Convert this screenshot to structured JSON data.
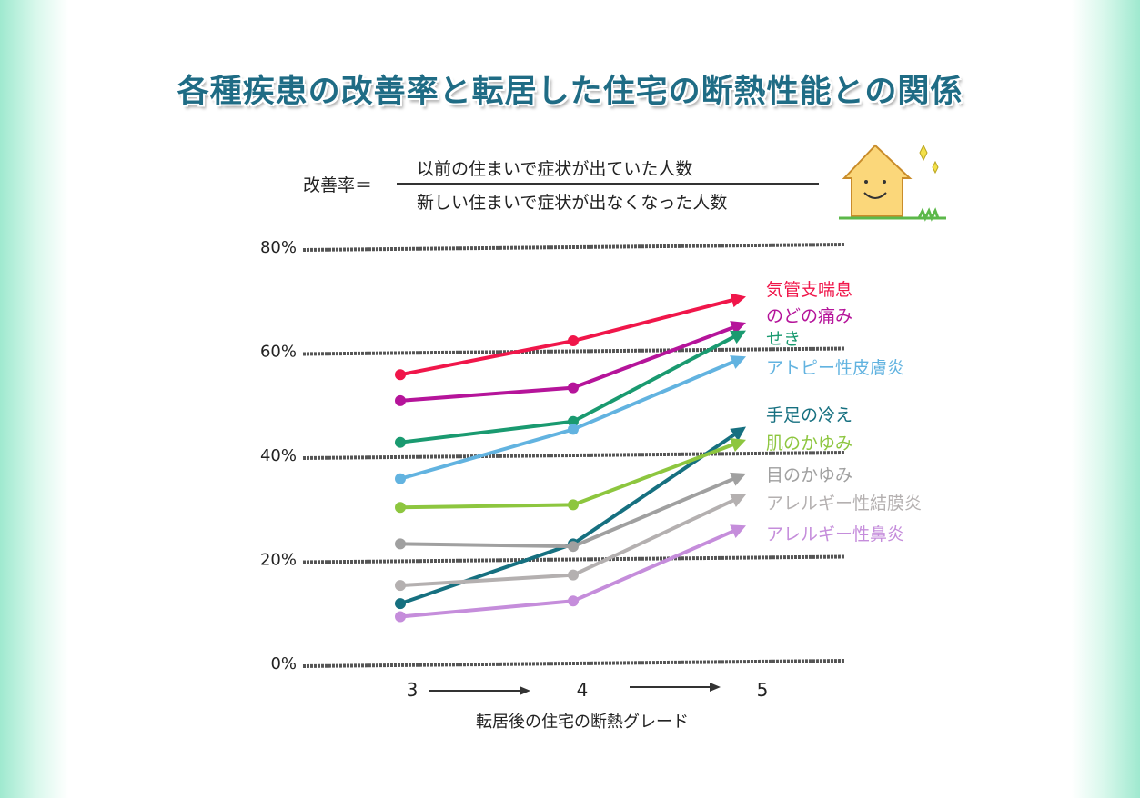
{
  "title": "各種疾患の改善率と転居した住宅の断熱性能との関係",
  "formula": {
    "label": "改善率＝",
    "numerator": "以前の住まいで症状が出ていた人数",
    "denominator": "新しい住まいで症状が出なくなった人数"
  },
  "chart_data": {
    "type": "line",
    "title": "各種疾患の改善率と転居した住宅の断熱性能との関係",
    "xlabel": "転居後の住宅の断熱グレード",
    "ylabel": "",
    "x": [
      3,
      4,
      5
    ],
    "x_tick_labels": [
      "3",
      "4",
      "5"
    ],
    "ylim": [
      0,
      80
    ],
    "y_ticks": [
      0,
      20,
      40,
      60,
      80
    ],
    "y_tick_labels": [
      "0%",
      "20%",
      "40%",
      "60%",
      "80%"
    ],
    "grid": true,
    "legend": "right (labels at line ends)",
    "series": [
      {
        "name": "気管支喘息",
        "color": "#f0164a",
        "values": [
          55.5,
          62,
          70.5
        ]
      },
      {
        "name": "のどの痛み",
        "color": "#b5149a",
        "values": [
          50.5,
          53,
          65.5
        ]
      },
      {
        "name": "せき",
        "color": "#1a9a70",
        "values": [
          42.5,
          46.5,
          64
        ]
      },
      {
        "name": "アトピー性皮膚炎",
        "color": "#62b3e0",
        "values": [
          35.5,
          45,
          59
        ]
      },
      {
        "name": "手足の冷え",
        "color": "#167080",
        "values": [
          11.5,
          23,
          45.5
        ]
      },
      {
        "name": "肌のかゆみ",
        "color": "#8dc63f",
        "values": [
          30,
          30.5,
          43
        ]
      },
      {
        "name": "目のかゆみ",
        "color": "#a0a0a0",
        "values": [
          23,
          22.5,
          36.5
        ]
      },
      {
        "name": "アレルギー性結膜炎",
        "color": "#b4b0b0",
        "values": [
          15,
          17,
          32.5
        ]
      },
      {
        "name": "アレルギー性鼻炎",
        "color": "#c58ddb",
        "values": [
          9,
          12,
          26.5
        ]
      }
    ]
  }
}
